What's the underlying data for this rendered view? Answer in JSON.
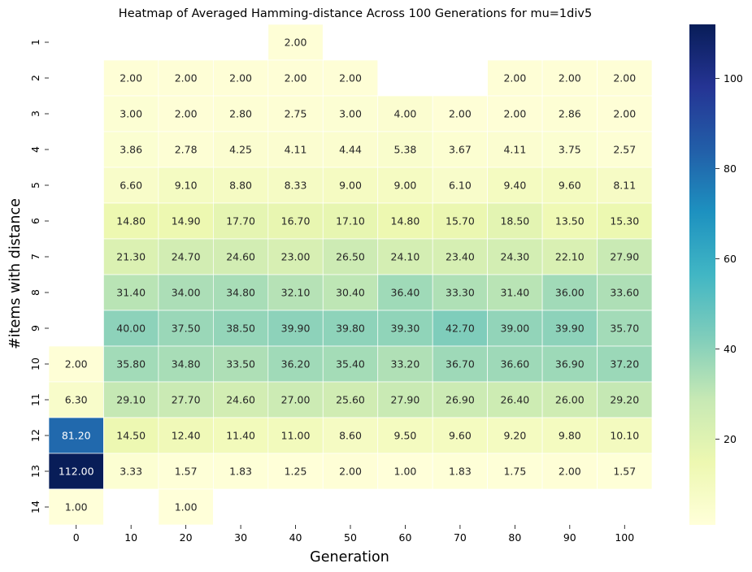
{
  "chart_data": {
    "type": "heatmap",
    "title": "Heatmap of Averaged Hamming-distance Across 100 Generations for mu=1div5",
    "xlabel": "Generation",
    "ylabel": "#items with distance",
    "x": [
      "0",
      "10",
      "20",
      "30",
      "40",
      "50",
      "60",
      "70",
      "80",
      "90",
      "100"
    ],
    "y": [
      "1",
      "2",
      "3",
      "4",
      "5",
      "6",
      "7",
      "8",
      "9",
      "10",
      "11",
      "12",
      "13",
      "14"
    ],
    "values": [
      [
        null,
        null,
        null,
        null,
        2.0,
        null,
        null,
        null,
        null,
        null,
        null
      ],
      [
        null,
        2.0,
        2.0,
        2.0,
        2.0,
        2.0,
        null,
        null,
        2.0,
        2.0,
        2.0
      ],
      [
        null,
        3.0,
        2.0,
        2.8,
        2.75,
        3.0,
        4.0,
        2.0,
        2.0,
        2.86,
        2.0
      ],
      [
        null,
        3.86,
        2.78,
        4.25,
        4.11,
        4.44,
        5.38,
        3.67,
        4.11,
        3.75,
        2.57
      ],
      [
        null,
        6.6,
        9.1,
        8.8,
        8.33,
        9.0,
        9.0,
        6.1,
        9.4,
        9.6,
        8.11
      ],
      [
        null,
        14.8,
        14.9,
        17.7,
        16.7,
        17.1,
        14.8,
        15.7,
        18.5,
        13.5,
        15.3
      ],
      [
        null,
        21.3,
        24.7,
        24.6,
        23.0,
        26.5,
        24.1,
        23.4,
        24.3,
        22.1,
        27.9
      ],
      [
        null,
        31.4,
        34.0,
        34.8,
        32.1,
        30.4,
        36.4,
        33.3,
        31.4,
        36.0,
        33.6
      ],
      [
        null,
        40.0,
        37.5,
        38.5,
        39.9,
        39.8,
        39.3,
        42.7,
        39.0,
        39.9,
        35.7
      ],
      [
        2.0,
        35.8,
        34.8,
        33.5,
        36.2,
        35.4,
        33.2,
        36.7,
        36.6,
        36.9,
        37.2
      ],
      [
        6.3,
        29.1,
        27.7,
        24.6,
        27.0,
        25.6,
        27.9,
        26.9,
        26.4,
        26.0,
        29.2
      ],
      [
        81.2,
        14.5,
        12.4,
        11.4,
        11.0,
        8.6,
        9.5,
        9.6,
        9.2,
        9.8,
        10.1
      ],
      [
        112.0,
        3.33,
        1.57,
        1.83,
        1.25,
        2.0,
        1.0,
        1.83,
        1.75,
        2.0,
        1.57
      ],
      [
        1.0,
        null,
        1.0,
        null,
        null,
        null,
        null,
        null,
        null,
        null,
        null
      ]
    ],
    "value_format_decimals": 2,
    "colormap": "YlGnBu",
    "colormap_stops": [
      "#ffffd9",
      "#edf8b1",
      "#c7e9b4",
      "#7fcdbb",
      "#41b6c4",
      "#1d91c0",
      "#225ea8",
      "#253494",
      "#081d58"
    ],
    "vmin": 1.0,
    "vmax": 112.0,
    "colorbar_ticks": [
      20,
      40,
      60,
      80,
      100
    ],
    "grid": false
  }
}
